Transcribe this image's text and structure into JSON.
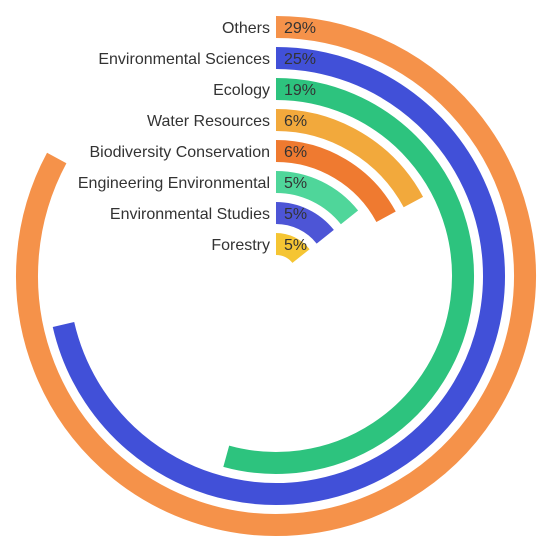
{
  "chart_data": {
    "type": "radial-bar",
    "categories": [
      "Others",
      "Environmental Sciences",
      "Ecology",
      "Water Resources",
      "Biodiversity Conservation",
      "Engineering Environmental",
      "Environmental Studies",
      "Forestry"
    ],
    "values": [
      29,
      25,
      19,
      6,
      6,
      5,
      5,
      5
    ],
    "value_labels": [
      "29%",
      "25%",
      "19%",
      "6%",
      "6%",
      "5%",
      "5%",
      "5%"
    ],
    "colors": [
      "#f5924a",
      "#4150d8",
      "#2dc37e",
      "#f2a93c",
      "#ef7a30",
      "#4fd69a",
      "#4d55d6",
      "#f5c533"
    ],
    "max_value": 35,
    "start_angle": "12 o'clock",
    "direction": "clockwise",
    "legend": "inline-left"
  }
}
